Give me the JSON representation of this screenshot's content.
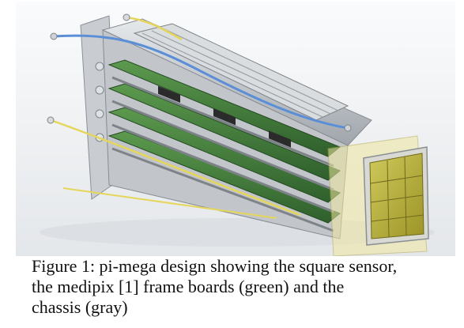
{
  "figure": {
    "caption_lines": [
      "Figure 1: pi-mega design showing the square sensor,",
      "the medipix [1] frame boards (green) and the",
      "chassis (gray)"
    ]
  },
  "colors": {
    "background": "#ffffff",
    "chassis_gray": "#b8bcc0",
    "board_green": "#3f7a3a",
    "sensor_yellow": "#b9b237",
    "cable_blue": "#5a8fd8",
    "wire_yellow": "#e5d65a"
  }
}
